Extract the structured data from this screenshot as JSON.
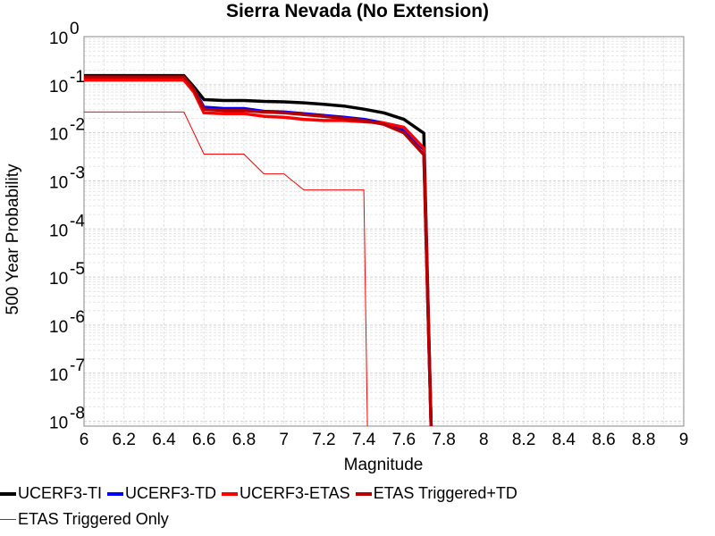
{
  "chart_data": {
    "type": "line",
    "title": "Sierra Nevada  (No Extension)",
    "xlabel": "Magnitude",
    "ylabel": "500 Year Probability",
    "xlim": [
      6,
      9
    ],
    "ylim_log10": [
      -8.1,
      0
    ],
    "y_scale": "log",
    "grid": true,
    "x_ticks": [
      "6",
      "6.2",
      "6.4",
      "6.6",
      "6.8",
      "7",
      "7.2",
      "7.4",
      "7.6",
      "7.8",
      "8",
      "8.2",
      "8.4",
      "8.6",
      "8.8",
      "9"
    ],
    "y_ticks": [
      {
        "base": "10",
        "exp": "0"
      },
      {
        "base": "10",
        "exp": "-1"
      },
      {
        "base": "10",
        "exp": "-2"
      },
      {
        "base": "10",
        "exp": "-3"
      },
      {
        "base": "10",
        "exp": "-4"
      },
      {
        "base": "10",
        "exp": "-5"
      },
      {
        "base": "10",
        "exp": "-6"
      },
      {
        "base": "10",
        "exp": "-7"
      },
      {
        "base": "10",
        "exp": "-8"
      }
    ],
    "series": [
      {
        "name": "UCERF3-TI",
        "color": "#000000",
        "weight": "thick",
        "x": [
          6.0,
          6.5,
          6.55,
          6.6,
          6.7,
          6.8,
          6.9,
          7.0,
          7.1,
          7.2,
          7.3,
          7.4,
          7.5,
          7.6,
          7.7,
          7.74
        ],
        "y": [
          0.155,
          0.155,
          0.09,
          0.049,
          0.047,
          0.047,
          0.045,
          0.044,
          0.042,
          0.039,
          0.036,
          0.031,
          0.026,
          0.019,
          0.0098,
          1e-09
        ]
      },
      {
        "name": "UCERF3-TD",
        "color": "#0000ff",
        "weight": "thick",
        "x": [
          6.0,
          6.5,
          6.55,
          6.6,
          6.7,
          6.8,
          6.9,
          7.0,
          7.1,
          7.2,
          7.3,
          7.4,
          7.5,
          7.6,
          7.7,
          7.74
        ],
        "y": [
          0.14,
          0.14,
          0.08,
          0.034,
          0.032,
          0.032,
          0.028,
          0.027,
          0.025,
          0.023,
          0.021,
          0.019,
          0.016,
          0.011,
          0.0045,
          1e-09
        ]
      },
      {
        "name": "UCERF3-ETAS",
        "color": "#ff0000",
        "weight": "thick",
        "x": [
          6.0,
          6.5,
          6.55,
          6.6,
          6.7,
          6.8,
          6.9,
          7.0,
          7.1,
          7.2,
          7.3,
          7.4,
          7.5,
          7.6,
          7.7,
          7.74
        ],
        "y": [
          0.125,
          0.125,
          0.07,
          0.026,
          0.025,
          0.025,
          0.022,
          0.021,
          0.019,
          0.018,
          0.018,
          0.017,
          0.016,
          0.013,
          0.0048,
          1e-09
        ]
      },
      {
        "name": "ETAS Triggered+TD",
        "color": "#b40000",
        "weight": "thick",
        "x": [
          6.0,
          6.5,
          6.55,
          6.6,
          6.7,
          6.8,
          6.9,
          7.0,
          7.1,
          7.2,
          7.3,
          7.4,
          7.5,
          7.6,
          7.7,
          7.74
        ],
        "y": [
          0.145,
          0.145,
          0.08,
          0.031,
          0.029,
          0.029,
          0.027,
          0.026,
          0.024,
          0.022,
          0.02,
          0.018,
          0.015,
          0.01,
          0.0035,
          1e-09
        ]
      },
      {
        "name": "ETAS Triggered Only",
        "color": "#ff0000",
        "weight": "thin",
        "x": [
          6.0,
          6.5,
          6.6,
          6.8,
          6.9,
          7.0,
          7.1,
          7.4,
          7.42
        ],
        "y": [
          0.027,
          0.027,
          0.0036,
          0.0036,
          0.0014,
          0.0014,
          0.00065,
          0.00065,
          1e-09
        ]
      }
    ]
  }
}
